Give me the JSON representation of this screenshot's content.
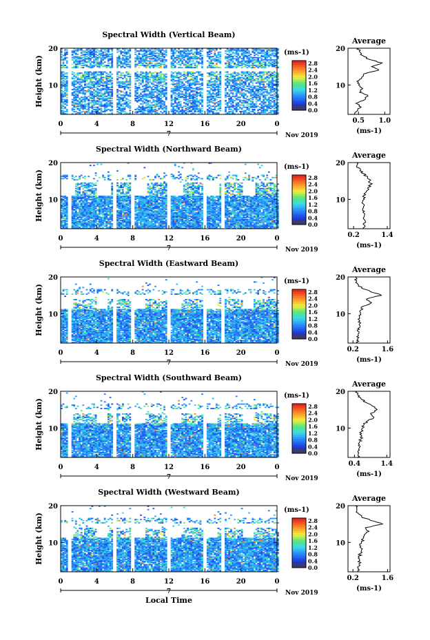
{
  "chart_data": [
    {
      "type": "heatmap",
      "title": "Spectral Width (Vertical Beam)",
      "ylabel": "Height (km)",
      "yticks": [
        "20",
        "10"
      ],
      "xticks": [
        "0",
        "4",
        "8",
        "12",
        "16",
        "20",
        "0"
      ],
      "xlim": [
        0,
        24
      ],
      "ylim": [
        2,
        20
      ],
      "date_marker": "7",
      "date_label": "Nov 2019",
      "colorbar": {
        "unit": "(ms-1)",
        "ticks": [
          "2.8",
          "2.4",
          "2.0",
          "1.6",
          "1.2",
          "0.8",
          "0.4",
          "0.0"
        ]
      },
      "avg_profile": {
        "title": "Average",
        "xlabel": "(ms-1)",
        "xticks": [
          "0.5",
          "1.0"
        ],
        "xlim": [
          0.3,
          1.1
        ],
        "yticks": [
          "20",
          "10"
        ],
        "height": [
          2,
          3,
          4,
          5,
          6,
          7,
          8,
          9,
          10,
          11,
          12,
          13,
          14,
          15,
          16,
          17,
          18,
          19,
          20
        ],
        "value": [
          0.42,
          0.48,
          0.55,
          0.45,
          0.62,
          0.68,
          0.52,
          0.58,
          0.5,
          0.47,
          0.56,
          0.6,
          0.88,
          0.75,
          0.95,
          0.7,
          0.58,
          0.52,
          0.5
        ]
      }
    },
    {
      "type": "heatmap",
      "title": "Spectral Width (Northward Beam)",
      "ylabel": "Height (km)",
      "yticks": [
        "20",
        "10"
      ],
      "xticks": [
        "0",
        "4",
        "8",
        "12",
        "16",
        "20",
        "0"
      ],
      "xlim": [
        0,
        24
      ],
      "ylim": [
        2,
        20
      ],
      "date_marker": "7",
      "date_label": "Nov 2019",
      "colorbar": {
        "unit": "(ms-1)",
        "ticks": [
          "2.8",
          "2.4",
          "2.0",
          "1.6",
          "1.2",
          "0.8",
          "0.4",
          "0.0"
        ]
      },
      "avg_profile": {
        "title": "Average",
        "xlabel": "(ms-1)",
        "xticks": [
          "0.2",
          "1.4"
        ],
        "xlim": [
          0.0,
          1.5
        ],
        "yticks": [
          "20",
          "10"
        ],
        "height": [
          2,
          3,
          4,
          5,
          6,
          7,
          8,
          9,
          10,
          11,
          12,
          13,
          14,
          15,
          16,
          17,
          18,
          19,
          20
        ],
        "value": [
          0.55,
          0.58,
          0.62,
          0.55,
          0.6,
          0.52,
          0.55,
          0.5,
          0.58,
          0.55,
          0.65,
          0.7,
          0.82,
          0.78,
          0.7,
          0.55,
          0.45,
          0.3,
          0.32
        ]
      }
    },
    {
      "type": "heatmap",
      "title": "Spectral Width (Eastward Beam)",
      "ylabel": "Height (km)",
      "yticks": [
        "20",
        "10"
      ],
      "xticks": [
        "0",
        "4",
        "8",
        "12",
        "16",
        "20",
        "0"
      ],
      "xlim": [
        0,
        24
      ],
      "ylim": [
        2,
        20
      ],
      "date_marker": "7",
      "date_label": "Nov 2019",
      "colorbar": {
        "unit": "(ms-1)",
        "ticks": [
          "2.8",
          "2.4",
          "2.0",
          "1.6",
          "1.2",
          "0.8",
          "0.4",
          "0.0"
        ]
      },
      "avg_profile": {
        "title": "Average",
        "xlabel": "(ms-1)",
        "xticks": [
          "0.2",
          "1.6"
        ],
        "xlim": [
          0.0,
          1.7
        ],
        "yticks": [
          "20",
          "10"
        ],
        "height": [
          2,
          3,
          4,
          5,
          6,
          7,
          8,
          9,
          10,
          11,
          12,
          13,
          14,
          15,
          16,
          17,
          18,
          19,
          20
        ],
        "value": [
          0.38,
          0.4,
          0.42,
          0.45,
          0.4,
          0.45,
          0.48,
          0.46,
          0.5,
          0.52,
          0.6,
          0.95,
          0.75,
          1.35,
          0.9,
          0.55,
          0.4,
          0.35,
          0.3
        ]
      }
    },
    {
      "type": "heatmap",
      "title": "Spectral Width (Southward Beam)",
      "ylabel": "Height (km)",
      "yticks": [
        "20",
        "10"
      ],
      "xticks": [
        "0",
        "4",
        "8",
        "12",
        "16",
        "20",
        "0"
      ],
      "xlim": [
        0,
        24
      ],
      "ylim": [
        2,
        20
      ],
      "date_marker": "7",
      "date_label": "Nov 2019",
      "colorbar": {
        "unit": "(ms-1)",
        "ticks": [
          "2.8",
          "2.4",
          "2.0",
          "1.6",
          "1.2",
          "0.8",
          "0.4",
          "0.0"
        ]
      },
      "avg_profile": {
        "title": "Average",
        "xlabel": "(ms-1)",
        "xticks": [
          "0.4",
          "1.4"
        ],
        "xlim": [
          0.2,
          1.5
        ],
        "yticks": [
          "20",
          "10"
        ],
        "height": [
          2,
          3,
          4,
          5,
          6,
          7,
          8,
          9,
          10,
          11,
          12,
          13,
          14,
          15,
          16,
          17,
          18,
          19,
          20
        ],
        "value": [
          0.5,
          0.52,
          0.55,
          0.58,
          0.55,
          0.6,
          0.62,
          0.6,
          0.65,
          0.7,
          0.82,
          1.0,
          0.9,
          1.1,
          0.95,
          0.75,
          0.6,
          0.5,
          0.48
        ]
      }
    },
    {
      "type": "heatmap",
      "title": "Spectral Width (Westward Beam)",
      "ylabel": "Height (km)",
      "yticks": [
        "20",
        "10"
      ],
      "xticks": [
        "0",
        "4",
        "8",
        "12",
        "16",
        "20",
        "0"
      ],
      "xlim": [
        0,
        24
      ],
      "ylim": [
        2,
        20
      ],
      "date_marker": "7",
      "date_label": "Nov 2019",
      "xlabel": "Local Time",
      "colorbar": {
        "unit": "(ms-1)",
        "ticks": [
          "2.8",
          "2.4",
          "2.0",
          "1.6",
          "1.2",
          "0.8",
          "0.4",
          "0.0"
        ]
      },
      "avg_profile": {
        "title": "Average",
        "xlabel": "(ms-1)",
        "xticks": [
          "0.2",
          "1.6"
        ],
        "xlim": [
          0.0,
          1.7
        ],
        "yticks": [
          "20",
          "10"
        ],
        "height": [
          2,
          3,
          4,
          5,
          6,
          7,
          8,
          9,
          10,
          11,
          12,
          13,
          14,
          15,
          16,
          17,
          18,
          19,
          20
        ],
        "value": [
          0.4,
          0.42,
          0.45,
          0.48,
          0.45,
          0.5,
          0.55,
          0.52,
          0.55,
          0.6,
          0.65,
          0.85,
          0.7,
          1.4,
          0.9,
          0.55,
          0.4,
          0.35,
          0.3
        ]
      }
    }
  ]
}
